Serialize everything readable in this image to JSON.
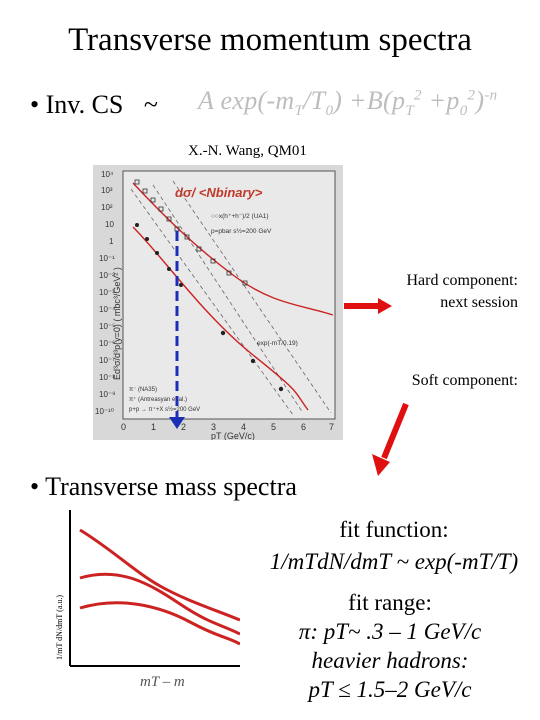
{
  "slide": {
    "title": "Transverse momentum spectra",
    "bullet1": "• Inv. CS",
    "tilde": "~",
    "formula": {
      "A": "A exp(-m",
      "T1": "T",
      "slash": "/T",
      "zero": "0",
      "plus": ") +B(p",
      "T2": "T",
      "two1": "2",
      "plusp": " +p",
      "zero2": "0",
      "two2": "2",
      "close": ")",
      "n": "-n"
    },
    "credit": "X.-N. Wang, QM01",
    "hard_label": "Hard component:",
    "hard_sub": "next session",
    "soft_label": "Soft component:",
    "bullet2": "• Transverse mass spectra",
    "fit_function_label": "fit function:",
    "fit_function": "1/mTdN/dmT ~ exp(-mT/T)",
    "fit_range_label": "fit range:",
    "fit_range_pi": "π: pT~ .3 – 1 GeV/c",
    "fit_range_heavy": "heavier hadrons:",
    "fit_range_heavy_val": "pT ≤ 1.5–2 GeV/c"
  },
  "embedded_plot": {
    "header": "dσ/ <Nbinary>",
    "legend": [
      "○○x(h⁺+h⁻)/2 (UA1)",
      "p=pbar s½=200 GeV"
    ],
    "legend_bottom": [
      "π⁻ (NA35)",
      "π⁺ (Antreasyan et al.)",
      "p+p → π⁺+X s½=200 GeV"
    ],
    "annotation": "exp(-mT/0.19)",
    "ylabel": "Ed³σ/d³p(y=0) ( mbc³/GeV² )",
    "xlabel": "pT (GeV/c)",
    "x_ticks": [
      "0",
      "1",
      "2",
      "3",
      "4",
      "5",
      "6",
      "7"
    ],
    "y_ticks": [
      "10⁴",
      "10³",
      "10²",
      "10",
      "1",
      "10⁻¹",
      "10⁻²",
      "10⁻³",
      "10⁻⁴",
      "10⁻⁵",
      "10⁻⁶",
      "10⁻⁷",
      "10⁻⁸",
      "10⁻⁹",
      "10⁻¹⁰"
    ]
  },
  "mt_plot": {
    "ylabel": "1/mT dN/dmT (a.u.)",
    "xlabel": "mT – m"
  },
  "colors": {
    "curve": "#cc2222",
    "arrow": "#e01010",
    "dashed": "#1a2fb5"
  }
}
